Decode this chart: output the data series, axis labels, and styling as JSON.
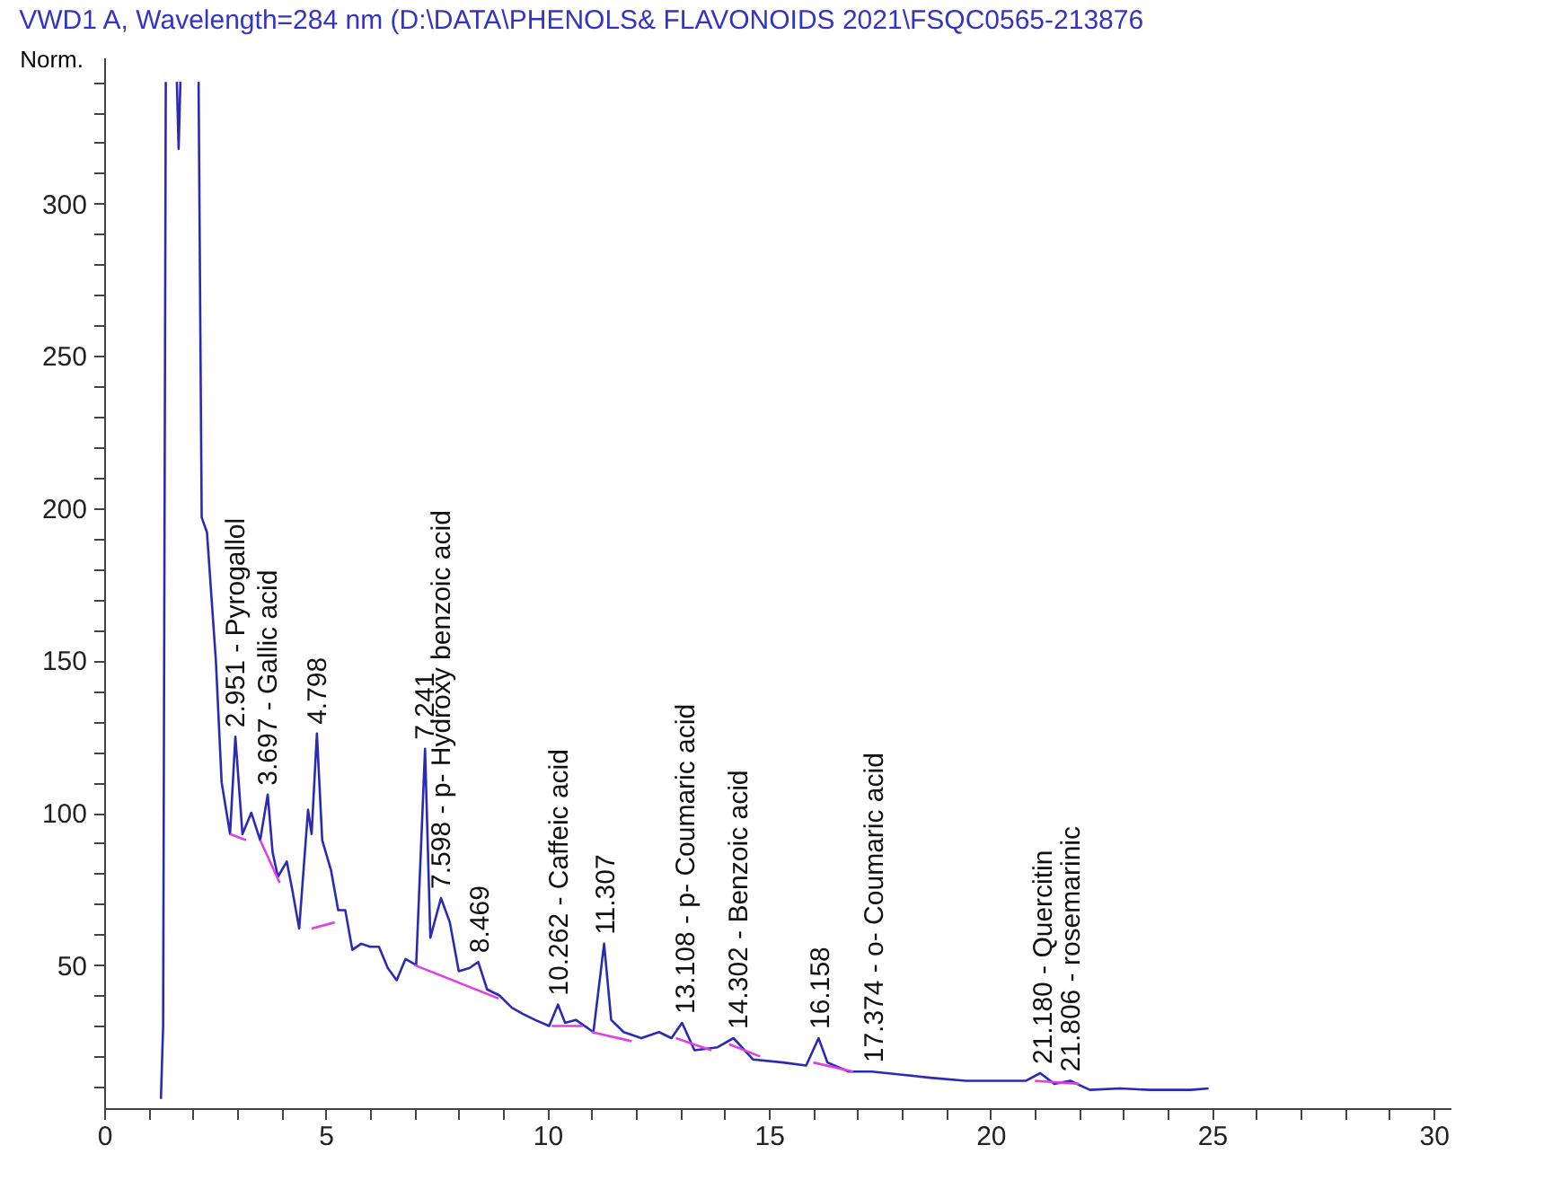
{
  "chart_data": {
    "type": "line",
    "title": "VWD1 A, Wavelength=284 nm (D:\\DATA\\PHENOLS& FLAVONOIDS 2021\\FSQC0565-213876",
    "ylabel": "Norm.",
    "xlim": [
      0,
      30.4
    ],
    "ylim": [
      3,
      348
    ],
    "xticks": [
      0,
      {
        "value": 1,
        "label": null
      },
      {
        "value": 2,
        "label": null
      },
      {
        "value": 3,
        "label": null
      },
      {
        "value": 4,
        "label": null
      },
      5,
      {
        "value": 6,
        "label": null
      },
      {
        "value": 7,
        "label": null
      },
      {
        "value": 8,
        "label": null
      },
      {
        "value": 9,
        "label": null
      },
      10,
      {
        "value": 11,
        "label": null
      },
      {
        "value": 12,
        "label": null
      },
      {
        "value": 13,
        "label": null
      },
      {
        "value": 14,
        "label": null
      },
      15,
      {
        "value": 16,
        "label": null
      },
      {
        "value": 17,
        "label": null
      },
      {
        "value": 18,
        "label": null
      },
      {
        "value": 19,
        "label": null
      },
      20,
      {
        "value": 21,
        "label": null
      },
      {
        "value": 22,
        "label": null
      },
      {
        "value": 23,
        "label": null
      },
      {
        "value": 24,
        "label": null
      },
      25,
      {
        "value": 26,
        "label": null
      },
      {
        "value": 27,
        "label": null
      },
      {
        "value": 28,
        "label": null
      },
      {
        "value": 29,
        "label": null
      },
      30
    ],
    "yticks": [
      {
        "value": 10,
        "label": null
      },
      {
        "value": 20,
        "label": null
      },
      {
        "value": 30,
        "label": null
      },
      {
        "value": 40,
        "label": null
      },
      50,
      {
        "value": 60,
        "label": null
      },
      {
        "value": 70,
        "label": null
      },
      {
        "value": 80,
        "label": null
      },
      {
        "value": 90,
        "label": null
      },
      100,
      {
        "value": 110,
        "label": null
      },
      {
        "value": 120,
        "label": null
      },
      {
        "value": 130,
        "label": null
      },
      {
        "value": 140,
        "label": null
      },
      150,
      {
        "value": 160,
        "label": null
      },
      {
        "value": 170,
        "label": null
      },
      {
        "value": 180,
        "label": null
      },
      {
        "value": 190,
        "label": null
      },
      200,
      {
        "value": 210,
        "label": null
      },
      {
        "value": 220,
        "label": null
      },
      {
        "value": 230,
        "label": null
      },
      {
        "value": 240,
        "label": null
      },
      250,
      {
        "value": 260,
        "label": null
      },
      {
        "value": 270,
        "label": null
      },
      {
        "value": 280,
        "label": null
      },
      {
        "value": 290,
        "label": null
      },
      300,
      {
        "value": 310,
        "label": null
      },
      {
        "value": 320,
        "label": null
      },
      {
        "value": 330,
        "label": null
      },
      {
        "value": 340,
        "label": null
      }
    ],
    "grid": false,
    "marker": "none",
    "line_style": "solid",
    "series": [
      {
        "color": "#2a2ab4",
        "x": [
          1.28,
          1.33,
          1.39,
          1.4,
          1.64,
          1.68,
          1.72,
          1.74,
          2.13,
          2.2,
          2.32,
          2.52,
          2.65,
          2.84,
          2.96,
          3.12,
          3.32,
          3.52,
          3.69,
          3.8,
          3.92,
          4.12,
          4.24,
          4.4,
          4.6,
          4.68,
          4.8,
          4.92,
          5.12,
          5.28,
          5.44,
          5.6,
          5.8,
          6.0,
          6.2,
          6.4,
          6.6,
          6.8,
          7.04,
          7.24,
          7.36,
          7.6,
          7.8,
          8.0,
          8.24,
          8.44,
          8.64,
          8.92,
          9.2,
          9.44,
          9.72,
          10.04,
          10.24,
          10.4,
          10.64,
          11.04,
          11.28,
          11.44,
          11.72,
          12.12,
          12.52,
          12.8,
          13.04,
          13.32,
          13.84,
          14.2,
          14.64,
          15.32,
          15.84,
          16.12,
          16.32,
          16.8,
          17.32,
          18.0,
          18.64,
          19.44,
          20.0,
          20.4,
          20.8,
          21.12,
          21.44,
          21.8,
          22.24,
          22.92,
          23.6,
          24.52,
          24.92
        ],
        "values": [
          6,
          30,
          340,
          null,
          340,
          318,
          340,
          null,
          340,
          197,
          192,
          150,
          110,
          93,
          125,
          93,
          100,
          91,
          106,
          87,
          79,
          84,
          75,
          62,
          101,
          93,
          126,
          91,
          81,
          68,
          68,
          55,
          57,
          56,
          56,
          49,
          45,
          52,
          50,
          121,
          59,
          72,
          64,
          48,
          49,
          51,
          42,
          40,
          36,
          34,
          32,
          30,
          37,
          31,
          32,
          28,
          57,
          32,
          28,
          26,
          28,
          26,
          31,
          22,
          23,
          26,
          19,
          18,
          17,
          26,
          18,
          15,
          15,
          14,
          13,
          12,
          12,
          12,
          12,
          14.5,
          11,
          12,
          9,
          9.5,
          9,
          9,
          9.5
        ]
      },
      {
        "color": "#e040e0",
        "x": [
          2.84,
          3.2,
          3.3,
          3.52,
          3.96,
          4.3,
          4.68,
          5.2,
          6.0,
          7.0,
          8.9,
          9.5,
          10.1,
          10.8,
          10.9,
          11.0,
          11.9,
          12.4,
          12.9,
          13.7,
          13.9,
          14.1,
          14.8,
          15.4,
          16.0,
          16.9,
          18.0,
          21.0,
          22.0
        ],
        "values": [
          93,
          91,
          null,
          91,
          77,
          null,
          62,
          64,
          null,
          50,
          39,
          null,
          30,
          30,
          null,
          28,
          25,
          null,
          26,
          22,
          null,
          24,
          20,
          null,
          18,
          15,
          null,
          12,
          11
        ]
      }
    ],
    "annotations": [
      {
        "text": "2.951 -  Pyrogallol",
        "x": 2.951,
        "y": 125
      },
      {
        "text": "3.697 -  Gallic acid",
        "x": 3.697,
        "y": 106
      },
      {
        "text": "4.798",
        "x": 4.798,
        "y": 126
      },
      {
        "text": "7.241",
        "x": 7.241,
        "y": 121
      },
      {
        "text": "7.598 -  p- Hydroxy benzoic acid",
        "x": 7.598,
        "y": 72
      },
      {
        "text": "8.469",
        "x": 8.469,
        "y": 51
      },
      {
        "text": "10.262 -  Caffeic acid",
        "x": 10.262,
        "y": 37
      },
      {
        "text": "11.307",
        "x": 11.307,
        "y": 57
      },
      {
        "text": "13.108 -  p- Coumaric acid",
        "x": 13.108,
        "y": 31
      },
      {
        "text": "14.302 -  Benzoic acid",
        "x": 14.302,
        "y": 26
      },
      {
        "text": "16.158",
        "x": 16.158,
        "y": 26
      },
      {
        "text": "17.374 -  o- Coumaric acid",
        "x": 17.374,
        "y": 15
      },
      {
        "text": "21.180 -  Quercitin",
        "x": 21.18,
        "y": 14.5
      },
      {
        "text": "21.806 -  rosemarinic",
        "x": 21.806,
        "y": 12
      }
    ]
  }
}
